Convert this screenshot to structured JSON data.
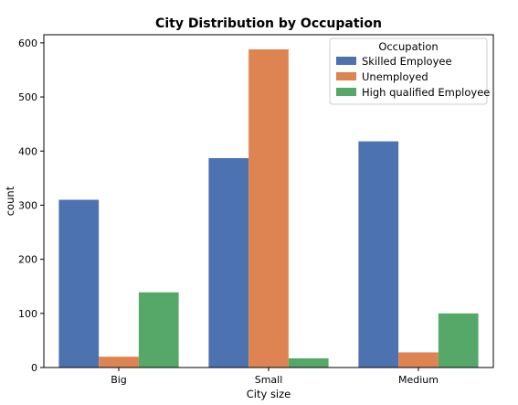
{
  "chart_data": {
    "type": "bar",
    "title": "City Distribution by Occupation",
    "xlabel": "City size",
    "ylabel": "count",
    "categories": [
      "Big",
      "Small",
      "Medium"
    ],
    "ylim": [
      0,
      615
    ],
    "yticks": [
      0,
      100,
      200,
      300,
      400,
      500,
      600
    ],
    "yticks_labels": [
      "0",
      "100",
      "200",
      "300",
      "400",
      "500",
      "600"
    ],
    "grid": false,
    "legend": {
      "title": "Occupation",
      "placement": "top-right"
    },
    "series": [
      {
        "name": "Skilled Employee",
        "color": "#4c72b0",
        "values": [
          310,
          387,
          418
        ]
      },
      {
        "name": "Unemployed",
        "color": "#dd8452",
        "values": [
          20,
          588,
          28
        ]
      },
      {
        "name": "High qualified Employee",
        "color": "#55a868",
        "values": [
          139,
          17,
          100
        ]
      }
    ]
  }
}
